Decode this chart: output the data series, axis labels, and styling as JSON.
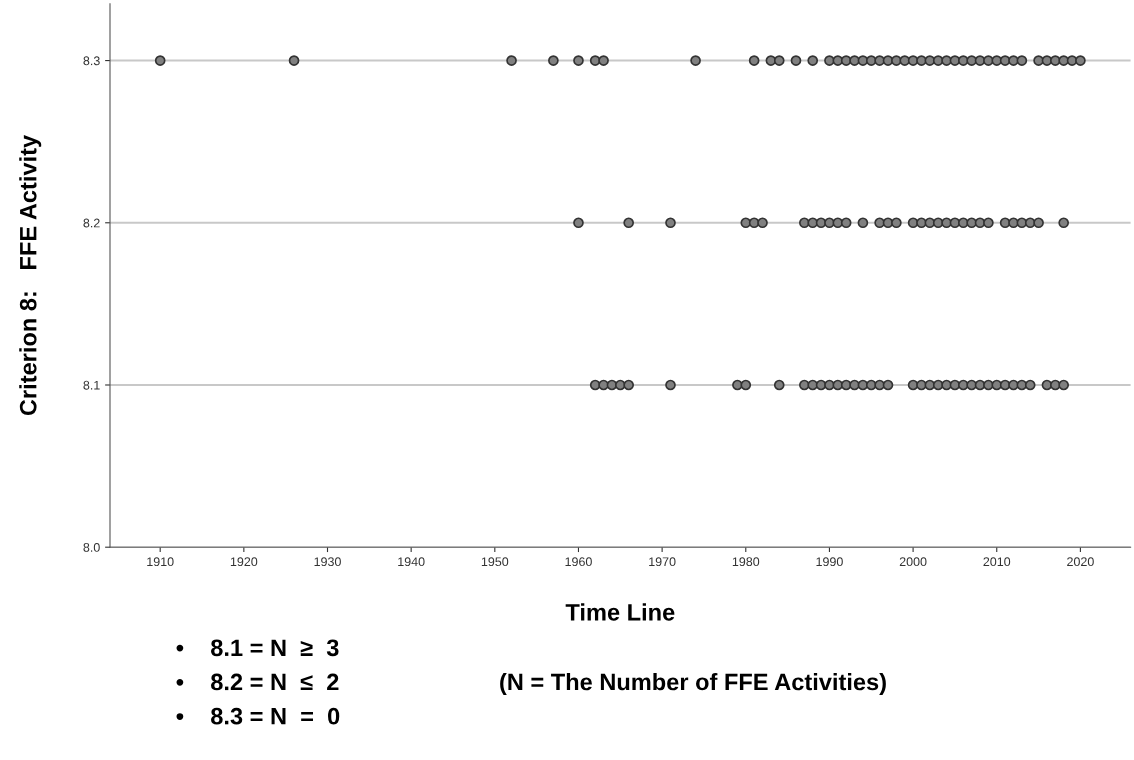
{
  "chart_data": {
    "type": "scatter",
    "xlabel": "Time Line",
    "ylabel": "Criterion 8:   FFE Activity",
    "series": [
      {
        "color": "#808080",
        "x": [
          1910,
          1926,
          1952,
          1957,
          1960,
          1962,
          1963,
          1974,
          1981,
          1983,
          1984,
          1986,
          1988,
          1990,
          1991,
          1992,
          1993,
          1994,
          1995,
          1996,
          1997,
          1998,
          1999,
          2000,
          2001,
          2002,
          2003,
          2004,
          2005,
          2006,
          2007,
          2008,
          2009,
          2010,
          2011,
          2012,
          2013,
          2015,
          2016,
          2017,
          2018,
          2019,
          2020
        ],
        "values": [
          8.3,
          8.3,
          8.3,
          8.3,
          8.3,
          8.3,
          8.3,
          8.3,
          8.3,
          8.3,
          8.3,
          8.3,
          8.3,
          8.3,
          8.3,
          8.3,
          8.3,
          8.3,
          8.3,
          8.3,
          8.3,
          8.3,
          8.3,
          8.3,
          8.3,
          8.3,
          8.3,
          8.3,
          8.3,
          8.3,
          8.3,
          8.3,
          8.3,
          8.3,
          8.3,
          8.3,
          8.3,
          8.3,
          8.3,
          8.3,
          8.3,
          8.3,
          8.3
        ]
      },
      {
        "color": "#808080",
        "x": [
          1960,
          1966,
          1971,
          1980,
          1981,
          1982,
          1987,
          1988,
          1989,
          1990,
          1991,
          1992,
          1994,
          1996,
          1997,
          1998,
          2000,
          2001,
          2002,
          2003,
          2004,
          2005,
          2006,
          2007,
          2008,
          2009,
          2011,
          2012,
          2013,
          2014,
          2015,
          2018
        ],
        "values": [
          8.2,
          8.2,
          8.2,
          8.2,
          8.2,
          8.2,
          8.2,
          8.2,
          8.2,
          8.2,
          8.2,
          8.2,
          8.2,
          8.2,
          8.2,
          8.2,
          8.2,
          8.2,
          8.2,
          8.2,
          8.2,
          8.2,
          8.2,
          8.2,
          8.2,
          8.2,
          8.2,
          8.2,
          8.2,
          8.2,
          8.2,
          8.2
        ]
      },
      {
        "color": "#808080",
        "x": [
          1962,
          1963,
          1964,
          1965,
          1966,
          1971,
          1979,
          1980,
          1984,
          1987,
          1988,
          1989,
          1990,
          1991,
          1992,
          1993,
          1994,
          1995,
          1996,
          1997,
          2000,
          2001,
          2002,
          2003,
          2004,
          2005,
          2006,
          2007,
          2008,
          2009,
          2010,
          2011,
          2012,
          2013,
          2014,
          2016,
          2017,
          2018
        ],
        "values": [
          8.1,
          8.1,
          8.1,
          8.1,
          8.1,
          8.1,
          8.1,
          8.1,
          8.1,
          8.1,
          8.1,
          8.1,
          8.1,
          8.1,
          8.1,
          8.1,
          8.1,
          8.1,
          8.1,
          8.1,
          8.1,
          8.1,
          8.1,
          8.1,
          8.1,
          8.1,
          8.1,
          8.1,
          8.1,
          8.1,
          8.1,
          8.1,
          8.1,
          8.1,
          8.1,
          8.1,
          8.1,
          8.1
        ]
      }
    ],
    "xlim": [
      1904,
      2026
    ],
    "xticks": [
      1910,
      1920,
      1930,
      1940,
      1950,
      1960,
      1970,
      1980,
      1990,
      2000,
      2010,
      2020
    ],
    "ylim": [
      8.0,
      8.335
    ],
    "yticks": [
      {
        "value": 8.0,
        "label": "8.0"
      },
      {
        "value": 8.1,
        "label": "8.1"
      },
      {
        "value": 8.2,
        "label": "8.2"
      },
      {
        "value": 8.3,
        "label": "8.3"
      }
    ],
    "grid": "y",
    "marker": "circle",
    "legend": false,
    "annotations": [
      "•    8.1 = N  ≥  3",
      "•    8.2 = N  ≤  2",
      "•    8.3 = N  =  0",
      "(N = The Number of FFE Activities)"
    ]
  }
}
